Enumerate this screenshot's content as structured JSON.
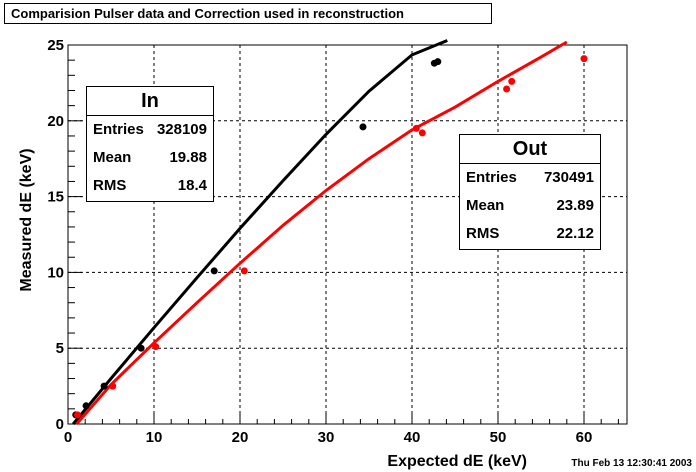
{
  "title": "Comparision Pulser data and Correction used in reconstruction",
  "timestamp": "Thu Feb 13 12:30:41 2003",
  "stat_boxes": [
    {
      "name": "In",
      "rows": [
        {
          "label": "Entries",
          "value": "328109"
        },
        {
          "label": "Mean",
          "value": "19.88"
        },
        {
          "label": "RMS",
          "value": "18.4"
        }
      ]
    },
    {
      "name": "Out",
      "rows": [
        {
          "label": "Entries",
          "value": "730491"
        },
        {
          "label": "Mean",
          "value": "23.89"
        },
        {
          "label": "RMS",
          "value": "22.12"
        }
      ]
    }
  ],
  "chart_data": {
    "type": "scatter",
    "xlabel": "Expected dE (keV)",
    "ylabel": "Measured dE (keV)",
    "xlim": [
      0,
      65
    ],
    "ylim": [
      0,
      25
    ],
    "xticks": [
      0,
      10,
      20,
      30,
      40,
      50,
      60
    ],
    "yticks": [
      0,
      5,
      10,
      15,
      20,
      25
    ],
    "grid": true,
    "colors": {
      "black": "#000000",
      "red": "#ff0000"
    },
    "series": [
      {
        "color": "black",
        "kind": "points",
        "x": [
          0.9,
          2.1,
          4.2,
          8.5,
          17.0,
          34.3,
          42.6,
          43.0
        ],
        "y": [
          0.6,
          1.2,
          2.5,
          5.0,
          10.1,
          19.6,
          23.8,
          23.9
        ]
      },
      {
        "color": "red",
        "kind": "points",
        "x": [
          1.1,
          5.2,
          10.2,
          20.5,
          40.5,
          41.2,
          51.0,
          51.6,
          60.0
        ],
        "y": [
          0.6,
          2.5,
          5.1,
          10.1,
          19.5,
          19.2,
          22.1,
          22.6,
          24.1
        ]
      },
      {
        "color": "black",
        "kind": "line",
        "x": [
          0.6,
          5,
          10,
          15,
          20,
          25,
          30,
          35,
          40,
          44.1
        ],
        "y": [
          0,
          3.0,
          6.35,
          9.65,
          12.9,
          16.05,
          19.1,
          21.95,
          24.35,
          25.3
        ]
      },
      {
        "color": "red",
        "kind": "line",
        "x": [
          1.0,
          5,
          10,
          15,
          20,
          25,
          30,
          35,
          40,
          45,
          50,
          55,
          58.0
        ],
        "y": [
          0,
          2.6,
          5.35,
          8.0,
          10.6,
          13.1,
          15.4,
          17.5,
          19.4,
          20.9,
          22.6,
          24.2,
          25.2
        ]
      }
    ]
  }
}
